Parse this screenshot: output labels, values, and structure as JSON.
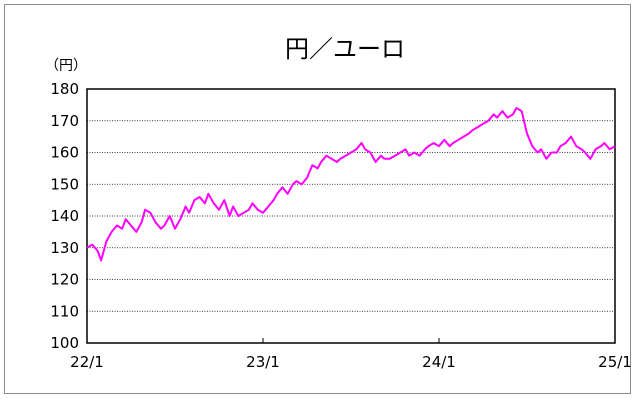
{
  "chart_data": {
    "type": "line",
    "title": "円／ユーロ",
    "unit_label": "（円）",
    "ylim": [
      100,
      180
    ],
    "yticks": [
      100,
      110,
      120,
      130,
      140,
      150,
      160,
      170,
      180
    ],
    "xlim": [
      2022.0,
      2025.0
    ],
    "xticks": [
      {
        "label": "22/1",
        "value": 2022.0
      },
      {
        "label": "23/1",
        "value": 2023.0
      },
      {
        "label": "24/1",
        "value": 2024.0
      },
      {
        "label": "25/1",
        "value": 2025.0
      }
    ],
    "grid": "horizontal-dotted",
    "series": [
      {
        "color": "#ff00ff",
        "x": [
          2022.0,
          2022.03,
          2022.06,
          2022.08,
          2022.11,
          2022.14,
          2022.17,
          2022.2,
          2022.22,
          2022.25,
          2022.28,
          2022.31,
          2022.33,
          2022.36,
          2022.39,
          2022.42,
          2022.44,
          2022.47,
          2022.5,
          2022.53,
          2022.56,
          2022.58,
          2022.61,
          2022.64,
          2022.67,
          2022.69,
          2022.72,
          2022.75,
          2022.78,
          2022.81,
          2022.83,
          2022.86,
          2022.89,
          2022.92,
          2022.94,
          2022.97,
          2023.0,
          2023.03,
          2023.06,
          2023.08,
          2023.11,
          2023.14,
          2023.17,
          2023.19,
          2023.22,
          2023.25,
          2023.28,
          2023.31,
          2023.33,
          2023.36,
          2023.39,
          2023.42,
          2023.44,
          2023.47,
          2023.5,
          2023.53,
          2023.56,
          2023.58,
          2023.61,
          2023.64,
          2023.67,
          2023.69,
          2023.72,
          2023.75,
          2023.78,
          2023.81,
          2023.83,
          2023.86,
          2023.89,
          2023.92,
          2023.94,
          2023.97,
          2024.0,
          2024.03,
          2024.06,
          2024.08,
          2024.11,
          2024.14,
          2024.17,
          2024.19,
          2024.22,
          2024.25,
          2024.28,
          2024.31,
          2024.33,
          2024.36,
          2024.39,
          2024.42,
          2024.44,
          2024.47,
          2024.5,
          2024.53,
          2024.56,
          2024.58,
          2024.61,
          2024.64,
          2024.67,
          2024.69,
          2024.72,
          2024.75,
          2024.78,
          2024.81,
          2024.83,
          2024.86,
          2024.89,
          2024.92,
          2024.94,
          2024.97,
          2025.0
        ],
        "y": [
          130,
          131,
          129,
          126,
          132,
          135,
          137,
          136,
          139,
          137,
          135,
          138,
          142,
          141,
          138,
          136,
          137,
          140,
          136,
          139,
          143,
          141,
          145,
          146,
          144,
          147,
          144,
          142,
          145,
          140,
          143,
          140,
          141,
          142,
          144,
          142,
          141,
          143,
          145,
          147,
          149,
          147,
          150,
          151,
          150,
          152,
          156,
          155,
          157,
          159,
          158,
          157,
          158,
          159,
          160,
          161,
          163,
          161,
          160,
          157,
          159,
          158,
          158,
          159,
          160,
          161,
          159,
          160,
          159,
          161,
          162,
          163,
          162,
          164,
          162,
          163,
          164,
          165,
          166,
          167,
          168,
          169,
          170,
          172,
          171,
          173,
          171,
          172,
          174,
          173,
          166,
          162,
          160,
          161,
          158,
          160,
          160,
          162,
          163,
          165,
          162,
          161,
          160,
          158,
          161,
          162,
          163,
          161,
          162
        ]
      }
    ]
  }
}
